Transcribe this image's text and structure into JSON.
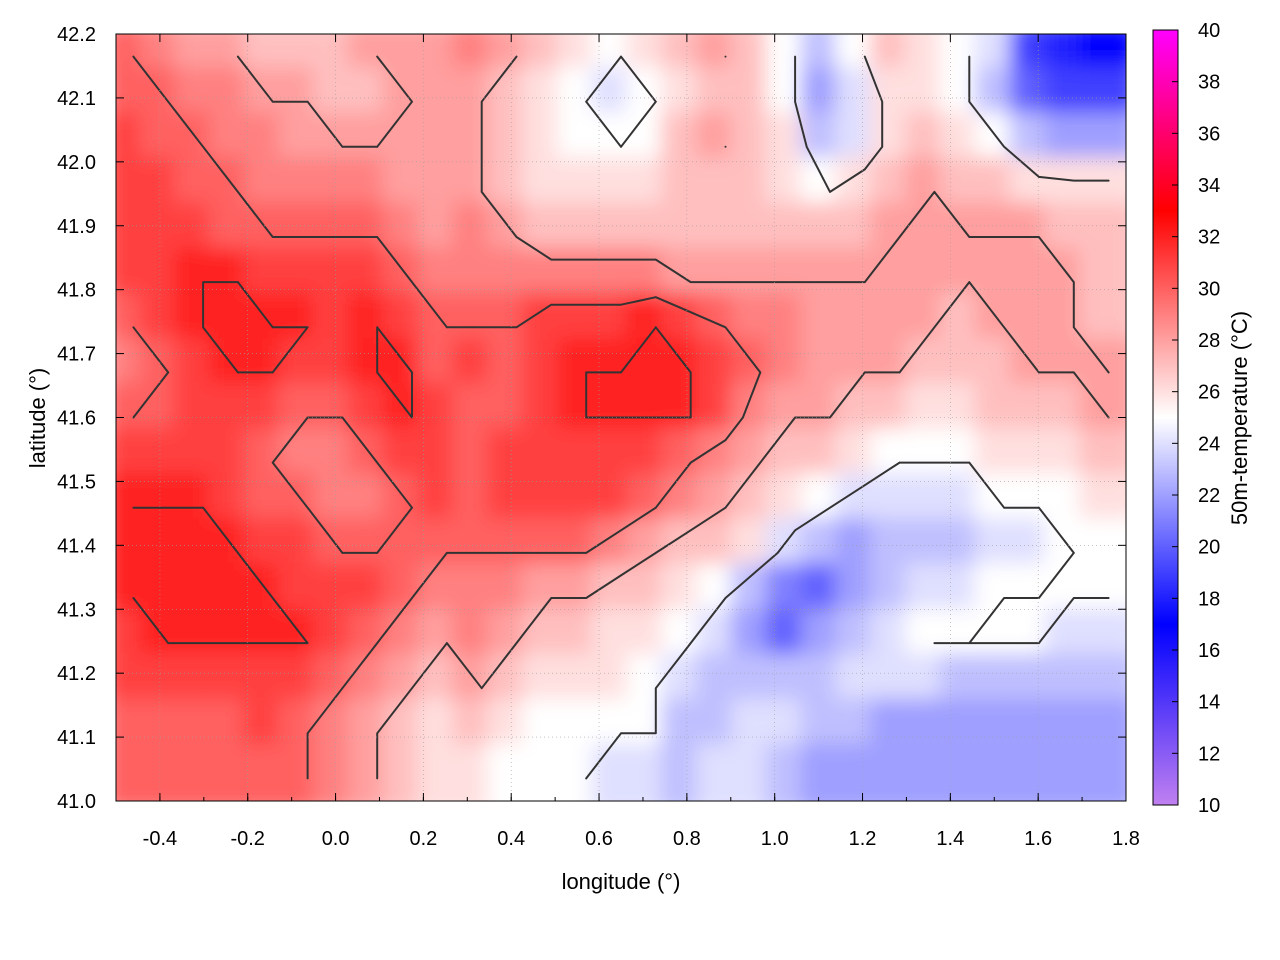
{
  "chart_data": {
    "type": "heatmap",
    "title": "",
    "xlabel": "longitude (°)",
    "ylabel": "latitude (°)",
    "colorbar_label": "50m-temperature (°C)",
    "xlim": [
      -0.5,
      1.8
    ],
    "ylim": [
      41.0,
      42.2
    ],
    "clim": [
      10,
      40
    ],
    "x_ticks": [
      "-0.4",
      "-0.2",
      "0.0",
      "0.2",
      "0.4",
      "0.6",
      "0.8",
      "1.0",
      "1.2",
      "1.4",
      "1.6",
      "1.8"
    ],
    "x_tick_values": [
      -0.4,
      -0.2,
      0.0,
      0.2,
      0.4,
      0.6,
      0.8,
      1.0,
      1.2,
      1.4,
      1.6,
      1.8
    ],
    "y_ticks": [
      "41.0",
      "41.1",
      "41.2",
      "41.3",
      "41.4",
      "41.5",
      "41.6",
      "41.7",
      "41.8",
      "41.9",
      "42.0",
      "42.1",
      "42.2"
    ],
    "y_tick_values": [
      41.0,
      41.1,
      41.2,
      41.3,
      41.4,
      41.5,
      41.6,
      41.7,
      41.8,
      41.9,
      42.0,
      42.1,
      42.2
    ],
    "colorbar_ticks": [
      "10",
      "12",
      "14",
      "16",
      "18",
      "20",
      "22",
      "24",
      "26",
      "28",
      "30",
      "32",
      "34",
      "36",
      "38",
      "40"
    ],
    "colorbar_tick_values": [
      10,
      12,
      14,
      16,
      18,
      20,
      22,
      24,
      26,
      28,
      30,
      32,
      34,
      36,
      38,
      40
    ],
    "colormap": [
      {
        "value": 10,
        "color": "#c080f0"
      },
      {
        "value": 17,
        "color": "#0000ff"
      },
      {
        "value": 25,
        "color": "#ffffff"
      },
      {
        "value": 33,
        "color": "#ff0000"
      },
      {
        "value": 40,
        "color": "#ff00ff"
      }
    ],
    "grid": true,
    "contour_color": "#333333",
    "field_rows_lat_desc": [
      [
        30,
        29,
        28,
        28,
        27,
        27,
        27,
        28,
        28,
        28,
        29,
        28,
        27,
        26,
        25,
        26,
        27,
        28,
        27,
        25,
        23,
        25,
        27,
        26,
        25,
        24,
        19,
        18,
        17
      ],
      [
        30,
        30,
        29,
        29,
        28,
        28,
        27,
        27,
        28,
        28,
        28,
        27,
        26,
        25,
        24,
        25,
        26,
        27,
        27,
        25,
        22,
        24,
        26,
        26,
        25,
        23,
        20,
        19,
        19
      ],
      [
        31,
        30,
        30,
        29,
        29,
        28,
        28,
        28,
        28,
        28,
        28,
        27,
        26,
        25,
        25,
        25,
        27,
        28,
        27,
        26,
        23,
        24,
        26,
        27,
        26,
        25,
        23,
        22,
        22
      ],
      [
        31,
        31,
        30,
        30,
        29,
        29,
        29,
        29,
        28,
        28,
        28,
        27,
        26,
        26,
        26,
        26,
        27,
        27,
        27,
        26,
        25,
        26,
        27,
        28,
        27,
        27,
        26,
        26,
        26
      ],
      [
        31,
        31,
        31,
        30,
        30,
        30,
        30,
        30,
        29,
        28,
        29,
        28,
        27,
        27,
        27,
        27,
        27,
        27,
        27,
        27,
        27,
        27,
        28,
        28,
        28,
        28,
        28,
        27,
        27
      ],
      [
        31,
        31,
        32,
        32,
        31,
        31,
        31,
        31,
        30,
        29,
        29,
        29,
        29,
        29,
        29,
        29,
        28,
        28,
        28,
        28,
        28,
        28,
        28,
        28,
        28,
        28,
        28,
        28,
        27
      ],
      [
        30,
        31,
        32,
        32,
        32,
        32,
        31,
        32,
        31,
        30,
        30,
        30,
        31,
        31,
        31,
        32,
        31,
        30,
        29,
        29,
        28,
        28,
        28,
        28,
        27,
        28,
        28,
        28,
        27
      ],
      [
        29,
        30,
        31,
        32,
        32,
        31,
        31,
        32,
        32,
        30,
        31,
        30,
        31,
        32,
        32,
        32,
        32,
        31,
        30,
        29,
        28,
        28,
        28,
        27,
        27,
        27,
        28,
        28,
        28
      ],
      [
        30,
        30,
        31,
        31,
        31,
        30,
        30,
        31,
        32,
        31,
        30,
        30,
        31,
        32,
        32,
        32,
        32,
        31,
        29,
        28,
        28,
        27,
        27,
        26,
        26,
        27,
        27,
        27,
        28
      ],
      [
        31,
        31,
        31,
        31,
        30,
        29,
        29,
        30,
        31,
        31,
        30,
        31,
        31,
        31,
        31,
        31,
        30,
        29,
        28,
        27,
        27,
        26,
        25,
        25,
        25,
        26,
        26,
        26,
        27
      ],
      [
        32,
        32,
        32,
        31,
        30,
        30,
        29,
        29,
        30,
        31,
        30,
        31,
        31,
        31,
        31,
        30,
        29,
        28,
        27,
        26,
        25,
        24,
        24,
        24,
        24,
        25,
        25,
        25,
        26
      ],
      [
        32,
        32,
        32,
        32,
        31,
        31,
        30,
        30,
        30,
        30,
        30,
        30,
        30,
        30,
        29,
        28,
        27,
        27,
        26,
        24,
        23,
        22,
        23,
        23,
        23,
        24,
        24,
        25,
        25
      ],
      [
        32,
        32,
        32,
        32,
        32,
        31,
        31,
        31,
        30,
        29,
        29,
        29,
        28,
        28,
        27,
        27,
        26,
        25,
        23,
        21,
        20,
        22,
        23,
        24,
        24,
        25,
        25,
        25,
        25
      ],
      [
        31,
        32,
        32,
        32,
        32,
        32,
        31,
        30,
        29,
        28,
        29,
        28,
        27,
        27,
        26,
        26,
        25,
        24,
        22,
        20,
        22,
        23,
        24,
        25,
        25,
        25,
        25,
        24,
        24
      ],
      [
        31,
        31,
        31,
        31,
        31,
        31,
        30,
        29,
        28,
        27,
        28,
        27,
        26,
        26,
        26,
        25,
        24,
        23,
        23,
        23,
        23,
        24,
        24,
        24,
        23,
        23,
        23,
        23,
        23
      ],
      [
        30,
        30,
        30,
        30,
        31,
        30,
        29,
        28,
        27,
        26,
        27,
        26,
        25,
        25,
        25,
        25,
        23,
        23,
        24,
        24,
        23,
        23,
        22,
        22,
        22,
        22,
        22,
        22,
        22
      ],
      [
        30,
        30,
        30,
        30,
        30,
        30,
        29,
        28,
        27,
        26,
        26,
        25,
        25,
        25,
        24,
        24,
        23,
        24,
        24,
        23,
        22,
        22,
        22,
        22,
        22,
        22,
        22,
        22,
        22
      ]
    ],
    "contour_levels": [
      25,
      28,
      30,
      32
    ]
  }
}
